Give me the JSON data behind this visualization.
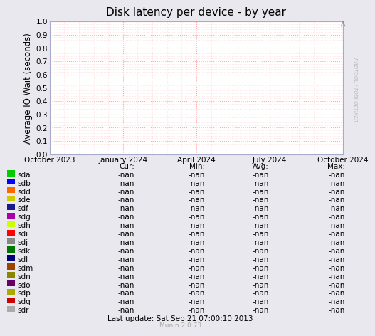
{
  "title": "Disk latency per device - by year",
  "ylabel": "Average IO Wait (seconds)",
  "yticks": [
    0.0,
    0.1,
    0.2,
    0.3,
    0.4,
    0.5,
    0.6,
    0.7,
    0.8,
    0.9,
    1.0
  ],
  "ylim": [
    0.0,
    1.0
  ],
  "xtick_labels": [
    "October 2023",
    "January 2024",
    "April 2024",
    "July 2024",
    "October 2024"
  ],
  "bg_color": "#e8e8ee",
  "plot_bg_color": "#ffffff",
  "grid_color": "#ffaaaa",
  "right_label": "RRDTOOL / TOBI OETIKER",
  "watermark": "Munin 2.0.73",
  "last_update": "Last update: Sat Sep 21 07:00:10 2013",
  "devices": [
    {
      "name": "sda",
      "color": "#00cc00"
    },
    {
      "name": "sdb",
      "color": "#0000ff"
    },
    {
      "name": "sdd",
      "color": "#ff6600"
    },
    {
      "name": "sde",
      "color": "#cccc00"
    },
    {
      "name": "sdf",
      "color": "#1a1a8c"
    },
    {
      "name": "sdg",
      "color": "#aa00aa"
    },
    {
      "name": "sdh",
      "color": "#ccff00"
    },
    {
      "name": "sdi",
      "color": "#ff0000"
    },
    {
      "name": "sdj",
      "color": "#888888"
    },
    {
      "name": "sdk",
      "color": "#007700"
    },
    {
      "name": "sdl",
      "color": "#00007f"
    },
    {
      "name": "sdm",
      "color": "#994400"
    },
    {
      "name": "sdn",
      "color": "#888800"
    },
    {
      "name": "sdo",
      "color": "#660066"
    },
    {
      "name": "sdp",
      "color": "#aaaa00"
    },
    {
      "name": "sdq",
      "color": "#cc0000"
    },
    {
      "name": "sdr",
      "color": "#aaaaaa"
    }
  ],
  "nan_label": "-nan"
}
